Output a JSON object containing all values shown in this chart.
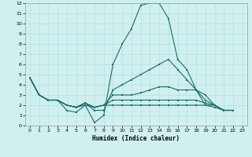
{
  "xlabel": "Humidex (Indice chaleur)",
  "bg_color": "#cff0ef",
  "grid_color": "#b8e0df",
  "line_color": "#1a6b6b",
  "xlim": [
    -0.5,
    23.5
  ],
  "ylim": [
    0,
    12
  ],
  "xticks": [
    0,
    1,
    2,
    3,
    4,
    5,
    6,
    7,
    8,
    9,
    10,
    11,
    12,
    13,
    14,
    15,
    16,
    17,
    18,
    19,
    20,
    21,
    22,
    23
  ],
  "yticks": [
    0,
    1,
    2,
    3,
    4,
    5,
    6,
    7,
    8,
    9,
    10,
    11,
    12
  ],
  "lines": [
    {
      "x": [
        0,
        1,
        2,
        3,
        4,
        5,
        6,
        7,
        8,
        9,
        10,
        11,
        12,
        13,
        14,
        15,
        16,
        17,
        18,
        19,
        20,
        21,
        22,
        23
      ],
      "y": [
        4.7,
        3.0,
        2.5,
        2.5,
        1.5,
        1.3,
        2.0,
        0.3,
        1.0,
        6.0,
        8.0,
        9.5,
        11.8,
        12.0,
        12.0,
        10.5,
        6.5,
        5.5,
        3.5,
        2.0,
        1.8,
        1.5,
        1.5,
        null
      ]
    },
    {
      "x": [
        0,
        1,
        2,
        3,
        4,
        5,
        6,
        7,
        8,
        9,
        10,
        11,
        12,
        13,
        14,
        15,
        16,
        17,
        18,
        19,
        20,
        21,
        22,
        23
      ],
      "y": [
        4.7,
        3.0,
        2.5,
        2.5,
        2.0,
        1.8,
        2.2,
        1.5,
        1.5,
        3.5,
        4.0,
        4.5,
        5.0,
        5.5,
        6.0,
        6.5,
        5.5,
        4.5,
        3.5,
        2.5,
        2.0,
        1.5,
        1.5,
        null
      ]
    },
    {
      "x": [
        0,
        1,
        2,
        3,
        4,
        5,
        6,
        7,
        8,
        9,
        10,
        11,
        12,
        13,
        14,
        15,
        16,
        17,
        18,
        19,
        20,
        21,
        22,
        23
      ],
      "y": [
        4.7,
        3.0,
        2.5,
        2.5,
        2.0,
        1.8,
        2.2,
        1.8,
        2.0,
        3.0,
        3.0,
        3.0,
        3.2,
        3.5,
        3.8,
        3.8,
        3.5,
        3.5,
        3.5,
        3.0,
        2.0,
        1.5,
        1.5,
        null
      ]
    },
    {
      "x": [
        0,
        1,
        2,
        3,
        4,
        5,
        6,
        7,
        8,
        9,
        10,
        11,
        12,
        13,
        14,
        15,
        16,
        17,
        18,
        19,
        20,
        21,
        22,
        23
      ],
      "y": [
        4.7,
        3.0,
        2.5,
        2.5,
        2.0,
        1.8,
        2.2,
        1.8,
        2.0,
        2.5,
        2.5,
        2.5,
        2.5,
        2.5,
        2.5,
        2.5,
        2.5,
        2.5,
        2.5,
        2.2,
        2.0,
        1.5,
        1.5,
        null
      ]
    },
    {
      "x": [
        0,
        1,
        2,
        3,
        4,
        5,
        6,
        7,
        8,
        9,
        10,
        11,
        12,
        13,
        14,
        15,
        16,
        17,
        18,
        19,
        20,
        21,
        22,
        23
      ],
      "y": [
        4.7,
        3.0,
        2.5,
        2.5,
        2.0,
        1.8,
        2.0,
        1.8,
        2.0,
        2.0,
        2.0,
        2.0,
        2.0,
        2.0,
        2.0,
        2.0,
        2.0,
        2.0,
        2.0,
        2.0,
        2.0,
        1.5,
        1.5,
        null
      ]
    }
  ]
}
